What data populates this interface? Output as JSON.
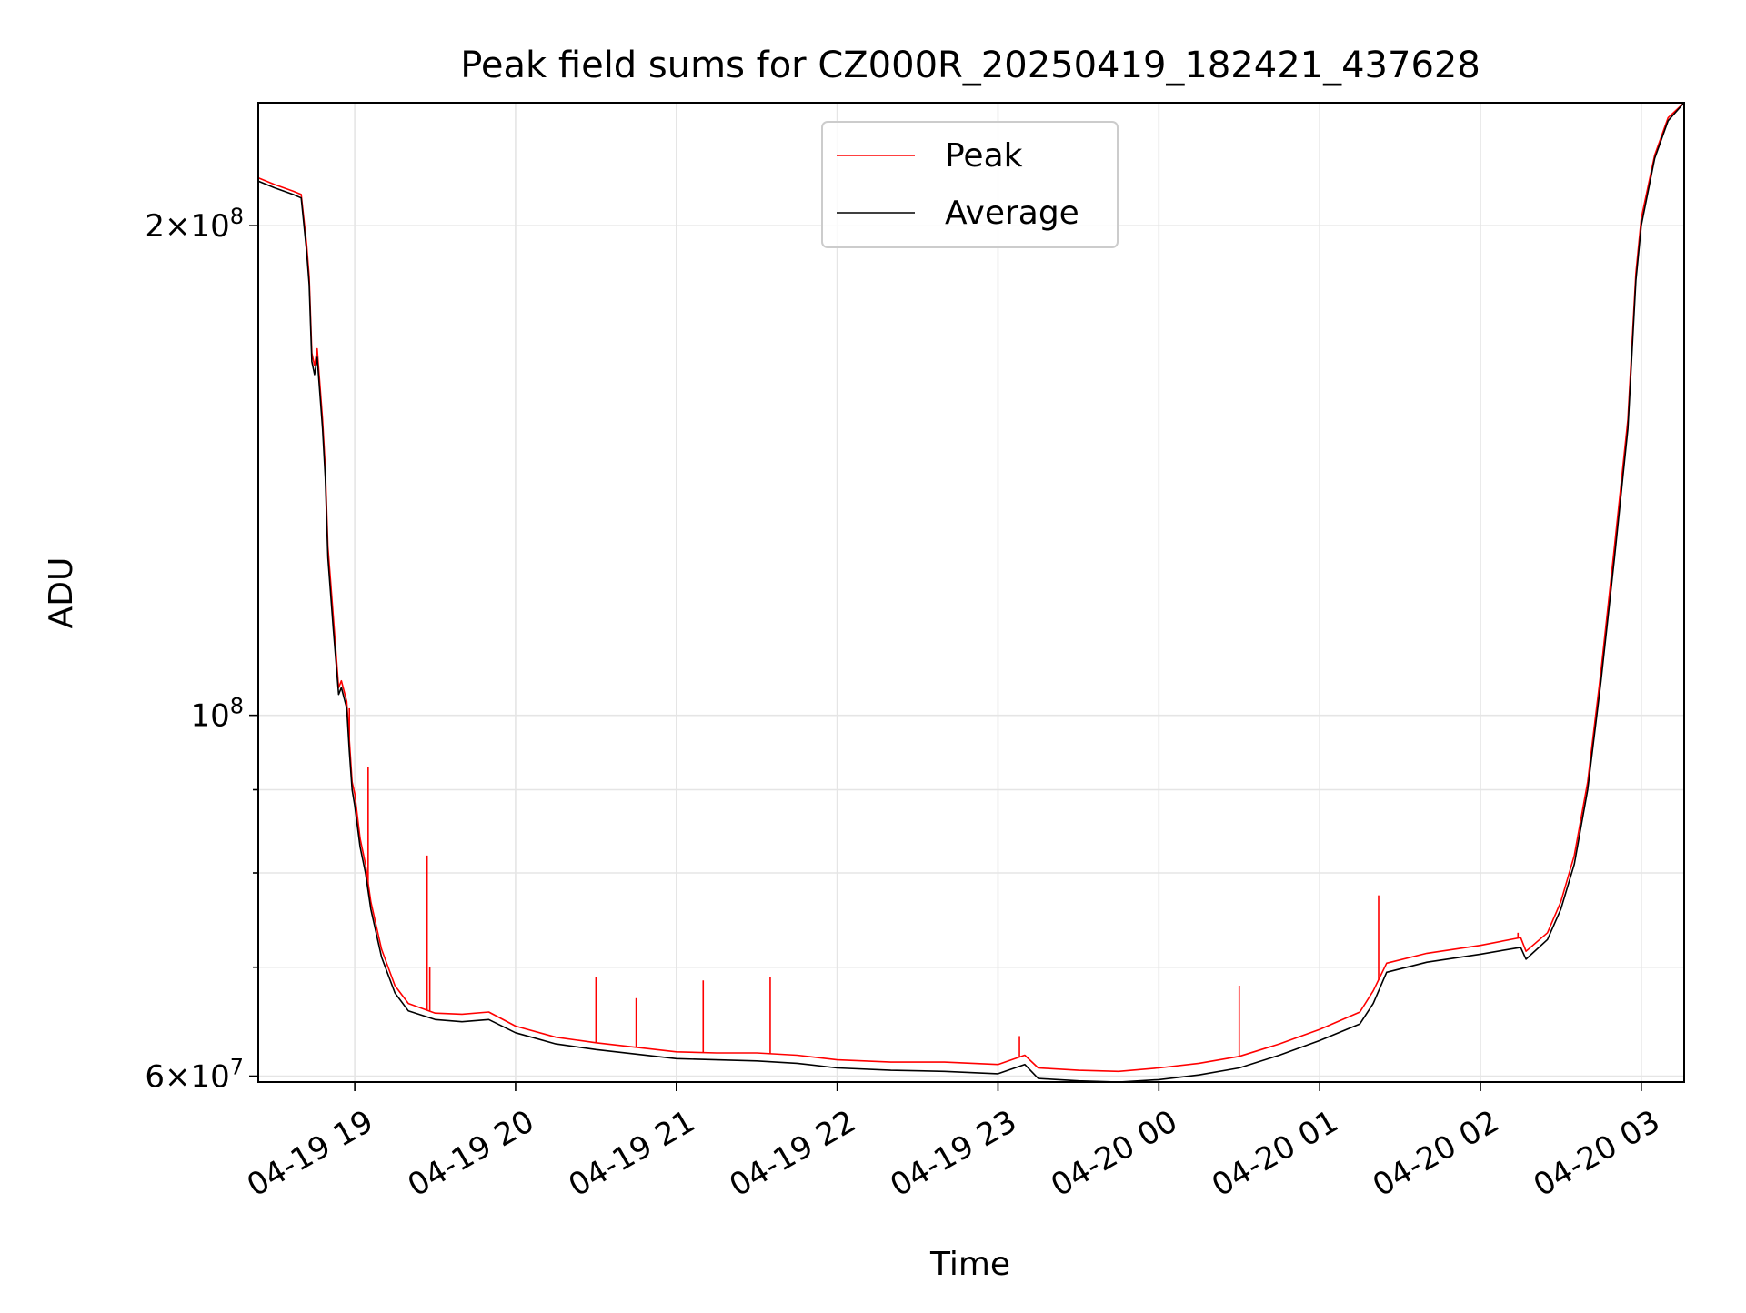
{
  "chart_data": {
    "type": "line",
    "title": "Peak field sums for CZ000R_20250419_182421_437628",
    "xlabel": "Time",
    "ylabel": "ADU",
    "yscale": "log",
    "ylim": [
      59500000,
      238000000
    ],
    "xlim": [
      "2025-04-19 18:24",
      "2025-04-20 03:16"
    ],
    "grid": true,
    "legend_position": "top-center",
    "x_ticks": [
      {
        "value": "2025-04-19 19:00",
        "label": "04-19 19"
      },
      {
        "value": "2025-04-19 20:00",
        "label": "04-19 20"
      },
      {
        "value": "2025-04-19 21:00",
        "label": "04-19 21"
      },
      {
        "value": "2025-04-19 22:00",
        "label": "04-19 22"
      },
      {
        "value": "2025-04-19 23:00",
        "label": "04-19 23"
      },
      {
        "value": "2025-04-20 00:00",
        "label": "04-20 00"
      },
      {
        "value": "2025-04-20 01:00",
        "label": "04-20 01"
      },
      {
        "value": "2025-04-20 02:00",
        "label": "04-20 02"
      },
      {
        "value": "2025-04-20 03:00",
        "label": "04-20 03"
      }
    ],
    "y_ticks": [
      {
        "value": 60000000,
        "mantissa": "6",
        "exponent": "7"
      },
      {
        "value": 100000000,
        "mantissa": "",
        "exponent": "8"
      },
      {
        "value": 200000000,
        "mantissa": "2",
        "exponent": "8"
      }
    ],
    "y_minor_ticks": [
      70000000,
      80000000,
      90000000
    ],
    "series": [
      {
        "name": "Average",
        "color": "#000000",
        "x": [
          "2025-04-19 18:24",
          "2025-04-19 18:30",
          "2025-04-19 18:37",
          "2025-04-19 18:40",
          "2025-04-19 18:42",
          "2025-04-19 18:43",
          "2025-04-19 18:44",
          "2025-04-19 18:45",
          "2025-04-19 18:46",
          "2025-04-19 18:48",
          "2025-04-19 18:49",
          "2025-04-19 18:50",
          "2025-04-19 18:52",
          "2025-04-19 18:54",
          "2025-04-19 18:55",
          "2025-04-19 18:57",
          "2025-04-19 18:58",
          "2025-04-19 18:59",
          "2025-04-19 19:00",
          "2025-04-19 19:02",
          "2025-04-19 19:04",
          "2025-04-19 19:06",
          "2025-04-19 19:10",
          "2025-04-19 19:15",
          "2025-04-19 19:20",
          "2025-04-19 19:30",
          "2025-04-19 19:40",
          "2025-04-19 19:50",
          "2025-04-19 20:00",
          "2025-04-19 20:15",
          "2025-04-19 20:30",
          "2025-04-19 20:45",
          "2025-04-19 21:00",
          "2025-04-19 21:15",
          "2025-04-19 21:30",
          "2025-04-19 21:45",
          "2025-04-19 22:00",
          "2025-04-19 22:20",
          "2025-04-19 22:40",
          "2025-04-19 23:00",
          "2025-04-19 23:10",
          "2025-04-19 23:15",
          "2025-04-19 23:30",
          "2025-04-19 23:45",
          "2025-04-20 00:00",
          "2025-04-20 00:15",
          "2025-04-20 00:30",
          "2025-04-20 00:45",
          "2025-04-20 01:00",
          "2025-04-20 01:15",
          "2025-04-20 01:20",
          "2025-04-20 01:25",
          "2025-04-20 01:40",
          "2025-04-20 02:00",
          "2025-04-20 02:15",
          "2025-04-20 02:17",
          "2025-04-20 02:25",
          "2025-04-20 02:30",
          "2025-04-20 02:35",
          "2025-04-20 02:40",
          "2025-04-20 02:45",
          "2025-04-20 02:50",
          "2025-04-20 02:55",
          "2025-04-20 02:58",
          "2025-04-20 03:00",
          "2025-04-20 03:05",
          "2025-04-20 03:10",
          "2025-04-20 03:16"
        ],
        "y": [
          213000000,
          211000000,
          209000000,
          208000000,
          193000000,
          184000000,
          165000000,
          162000000,
          166000000,
          150000000,
          140000000,
          125000000,
          113000000,
          103000000,
          104000000,
          101000000,
          95000000,
          90000000,
          88000000,
          83000000,
          80000000,
          76000000,
          71000000,
          67500000,
          65800000,
          65000000,
          64800000,
          65000000,
          63800000,
          62800000,
          62300000,
          61900000,
          61500000,
          61400000,
          61300000,
          61100000,
          60700000,
          60500000,
          60400000,
          60200000,
          61000000,
          59800000,
          59600000,
          59500000,
          59700000,
          60100000,
          60700000,
          61800000,
          63100000,
          64600000,
          66500000,
          69500000,
          70500000,
          71300000,
          72000000,
          70800000,
          72800000,
          76000000,
          81000000,
          90000000,
          105000000,
          125000000,
          150000000,
          185000000,
          200000000,
          220000000,
          232000000,
          238000000
        ]
      },
      {
        "name": "Peak",
        "color": "#ff0000",
        "x": [
          "2025-04-19 18:24",
          "2025-04-19 18:30",
          "2025-04-19 18:37",
          "2025-04-19 18:40",
          "2025-04-19 18:42",
          "2025-04-19 18:43",
          "2025-04-19 18:44",
          "2025-04-19 18:45",
          "2025-04-19 18:46",
          "2025-04-19 18:48",
          "2025-04-19 18:49",
          "2025-04-19 18:50",
          "2025-04-19 18:52",
          "2025-04-19 18:54",
          "2025-04-19 18:55",
          "2025-04-19 18:57",
          "2025-04-19 18:58",
          "2025-04-19 18:59",
          "2025-04-19 19:00",
          "2025-04-19 19:02",
          "2025-04-19 19:04",
          "2025-04-19 19:06",
          "2025-04-19 19:10",
          "2025-04-19 19:15",
          "2025-04-19 19:20",
          "2025-04-19 19:30",
          "2025-04-19 19:40",
          "2025-04-19 19:50",
          "2025-04-19 20:00",
          "2025-04-19 20:15",
          "2025-04-19 20:30",
          "2025-04-19 20:45",
          "2025-04-19 21:00",
          "2025-04-19 21:15",
          "2025-04-19 21:30",
          "2025-04-19 21:45",
          "2025-04-19 22:00",
          "2025-04-19 22:20",
          "2025-04-19 22:40",
          "2025-04-19 23:00",
          "2025-04-19 23:10",
          "2025-04-19 23:15",
          "2025-04-19 23:30",
          "2025-04-19 23:45",
          "2025-04-20 00:00",
          "2025-04-20 00:15",
          "2025-04-20 00:30",
          "2025-04-20 00:45",
          "2025-04-20 01:00",
          "2025-04-20 01:15",
          "2025-04-20 01:20",
          "2025-04-20 01:25",
          "2025-04-20 01:40",
          "2025-04-20 02:00",
          "2025-04-20 02:15",
          "2025-04-20 02:17",
          "2025-04-20 02:25",
          "2025-04-20 02:30",
          "2025-04-20 02:35",
          "2025-04-20 02:40",
          "2025-04-20 02:45",
          "2025-04-20 02:50",
          "2025-04-20 02:55",
          "2025-04-20 02:58",
          "2025-04-20 03:00",
          "2025-04-20 03:05",
          "2025-04-20 03:10",
          "2025-04-20 03:16"
        ],
        "y": [
          214000000,
          212000000,
          210000000,
          209000000,
          195000000,
          186000000,
          167000000,
          164000000,
          168000000,
          152000000,
          142000000,
          127000000,
          115000000,
          104000000,
          105000000,
          102000000,
          96500000,
          91000000,
          89500000,
          84000000,
          81000000,
          76800000,
          71800000,
          68200000,
          66500000,
          65600000,
          65500000,
          65700000,
          64400000,
          63400000,
          62900000,
          62500000,
          62100000,
          62000000,
          62000000,
          61800000,
          61400000,
          61200000,
          61200000,
          61000000,
          61800000,
          60700000,
          60500000,
          60400000,
          60700000,
          61100000,
          61700000,
          62800000,
          64100000,
          65700000,
          67700000,
          70400000,
          71400000,
          72200000,
          73000000,
          71600000,
          73500000,
          76800000,
          82000000,
          91000000,
          106500000,
          127000000,
          152000000,
          187000000,
          202000000,
          221000000,
          233000000,
          238000000
        ],
        "spikes": [
          {
            "x": "2025-04-19 18:58",
            "y": 101000000
          },
          {
            "x": "2025-04-19 19:05",
            "y": 93000000
          },
          {
            "x": "2025-04-19 19:27",
            "y": 82000000
          },
          {
            "x": "2025-04-19 19:28",
            "y": 70000000
          },
          {
            "x": "2025-04-19 20:30",
            "y": 69000000
          },
          {
            "x": "2025-04-19 20:45",
            "y": 67000000
          },
          {
            "x": "2025-04-19 21:10",
            "y": 68700000
          },
          {
            "x": "2025-04-19 21:35",
            "y": 69000000
          },
          {
            "x": "2025-04-19 23:08",
            "y": 63500000
          },
          {
            "x": "2025-04-20 00:30",
            "y": 68200000
          },
          {
            "x": "2025-04-20 01:22",
            "y": 77500000
          },
          {
            "x": "2025-04-20 02:14",
            "y": 73500000
          }
        ]
      }
    ]
  }
}
